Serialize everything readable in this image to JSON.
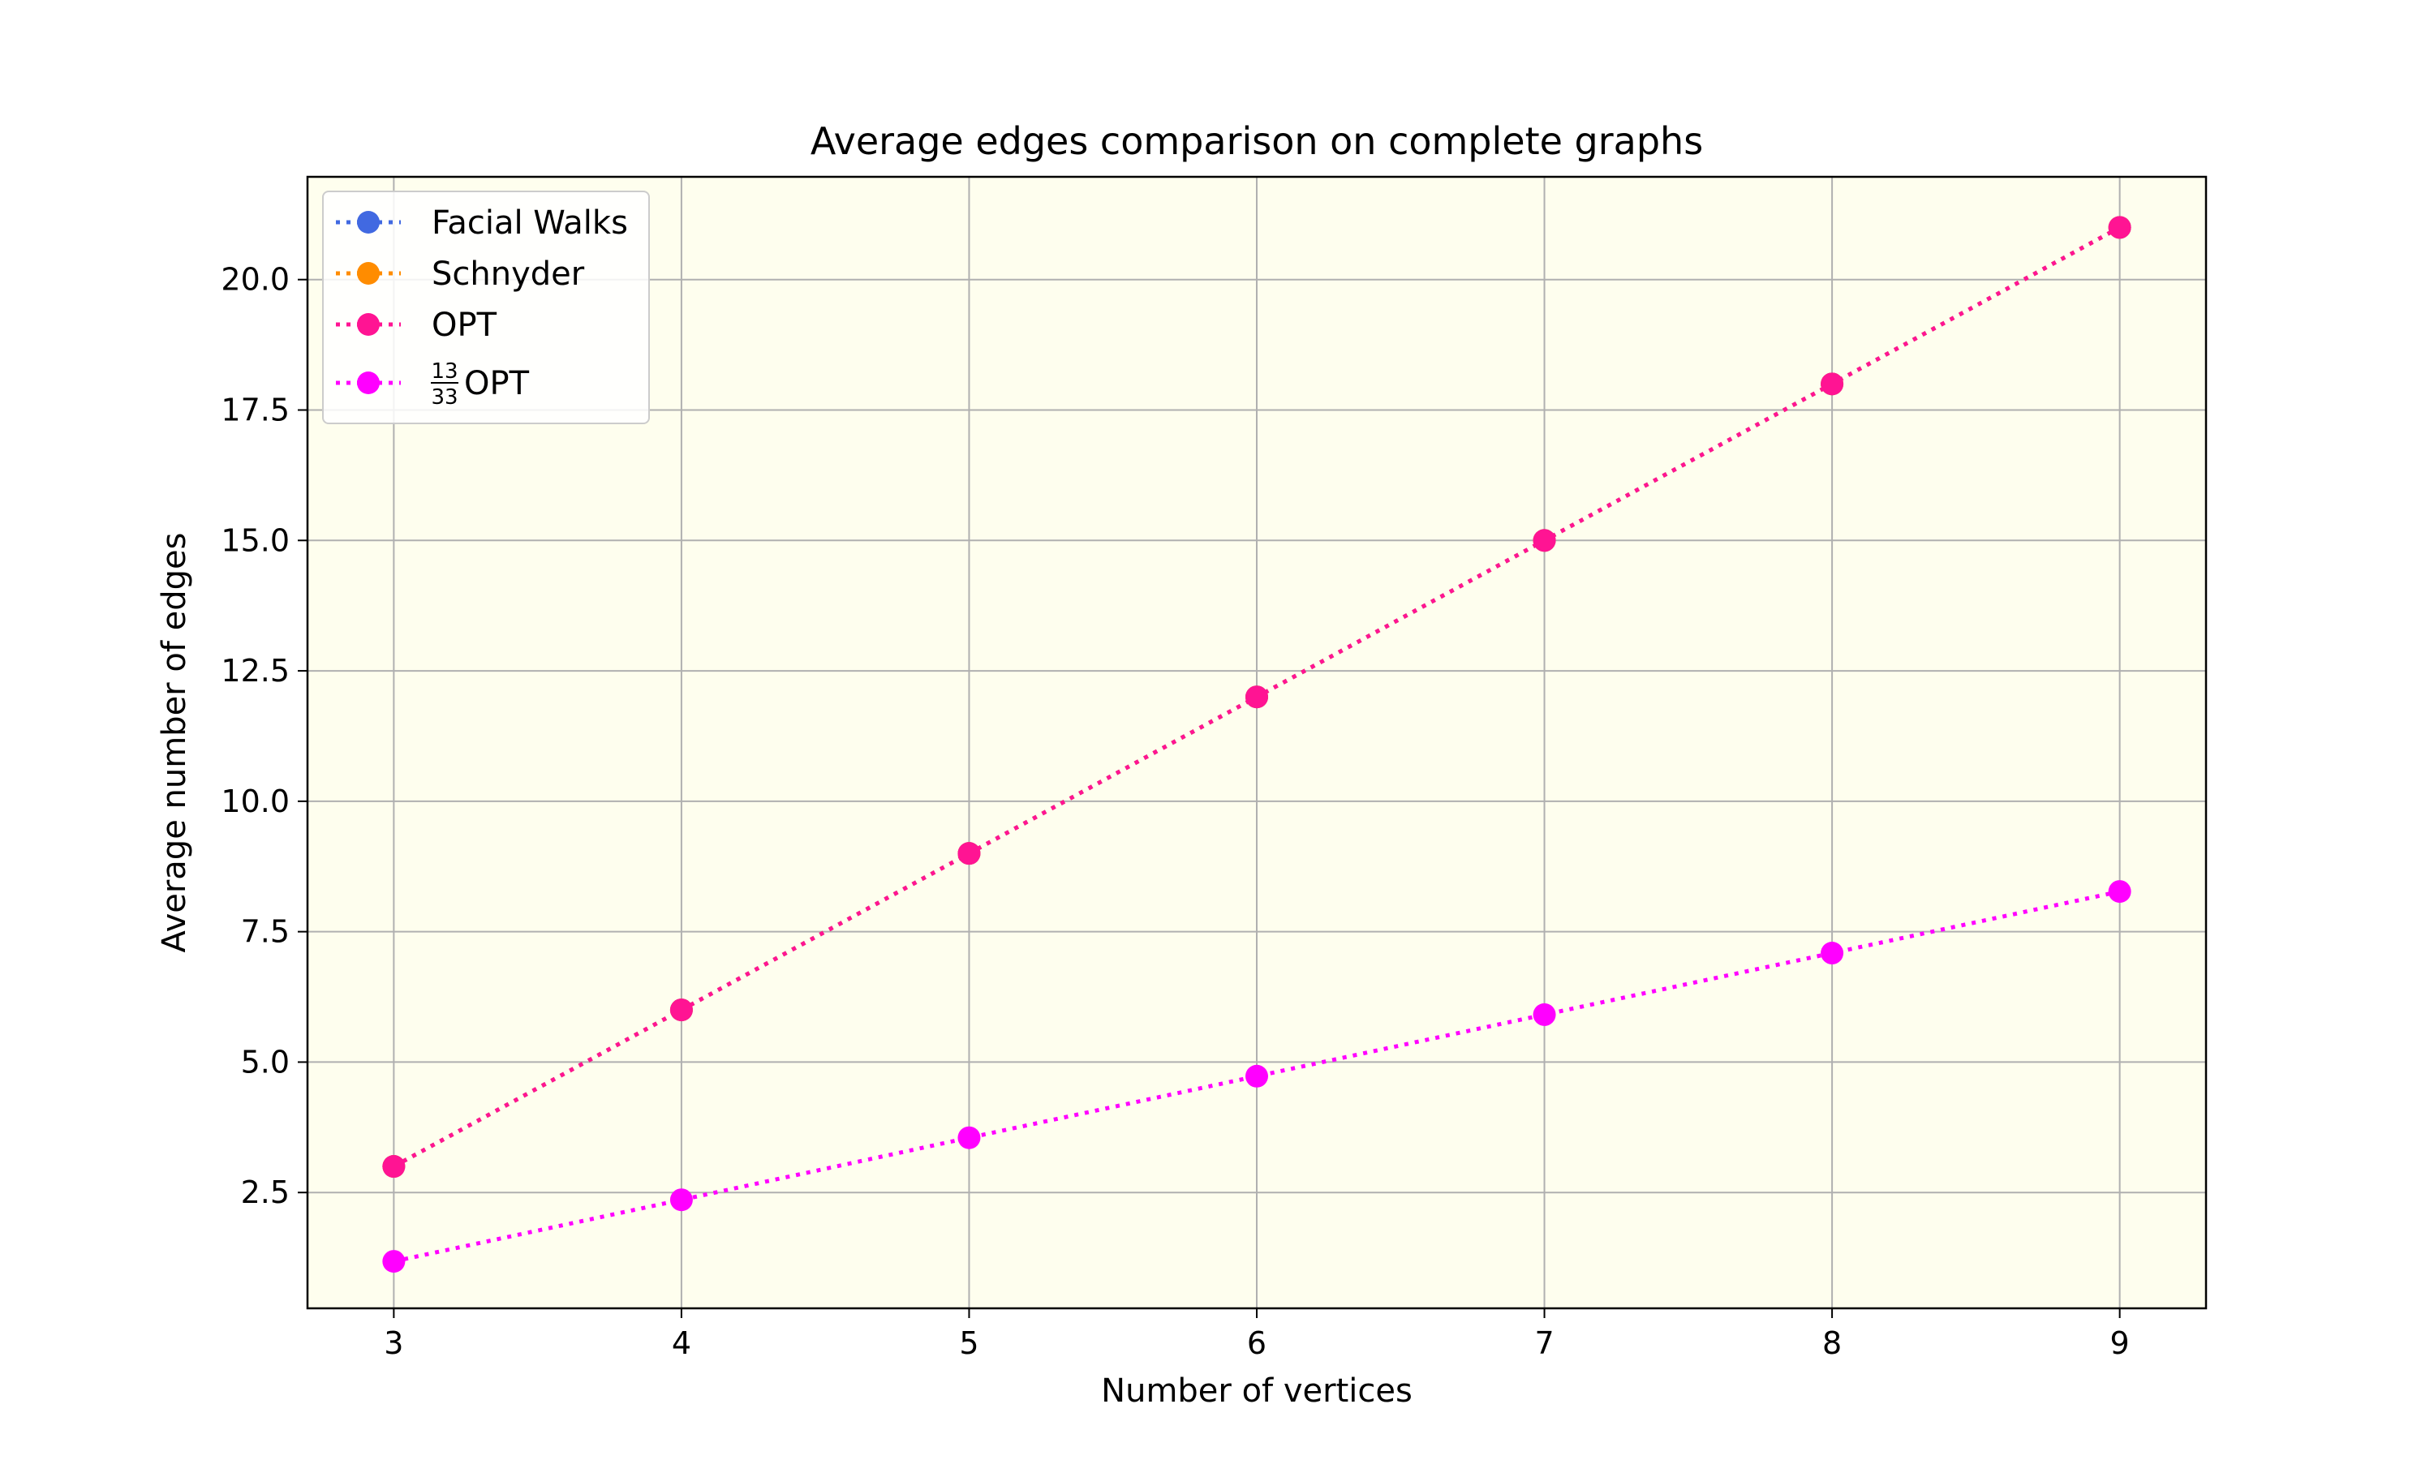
{
  "chart_data": {
    "type": "line",
    "title": "Average edges comparison on complete graphs",
    "xlabel": "Number of vertices",
    "ylabel": "Average number of edges",
    "x": [
      3,
      4,
      5,
      6,
      7,
      8,
      9
    ],
    "xlim": [
      2.7,
      9.3
    ],
    "ylim": [
      0.28,
      21.97
    ],
    "xticks": [
      "3",
      "4",
      "5",
      "6",
      "7",
      "8",
      "9"
    ],
    "yticks": [
      "2.5",
      "5.0",
      "7.5",
      "10.0",
      "12.5",
      "15.0",
      "17.5",
      "20.0"
    ],
    "grid": true,
    "legend_position": "top-left",
    "plot_background": "#fefeee",
    "series": [
      {
        "name": "Facial Walks",
        "color": "#4169e1",
        "values": [
          3,
          6,
          9,
          12,
          15,
          18,
          21
        ]
      },
      {
        "name": "Schnyder",
        "color": "#ff8c00",
        "values": [
          3,
          6,
          9,
          12,
          15,
          18,
          21
        ]
      },
      {
        "name": "OPT",
        "color": "#ff1493",
        "values": [
          3,
          6,
          9,
          12,
          15,
          18,
          21
        ]
      },
      {
        "name": "OPT",
        "name_fraction": {
          "numerator": "13",
          "denominator": "33"
        },
        "color": "#ff00ff",
        "values": [
          1.18,
          2.36,
          3.55,
          4.73,
          5.91,
          7.09,
          8.27
        ]
      }
    ]
  }
}
